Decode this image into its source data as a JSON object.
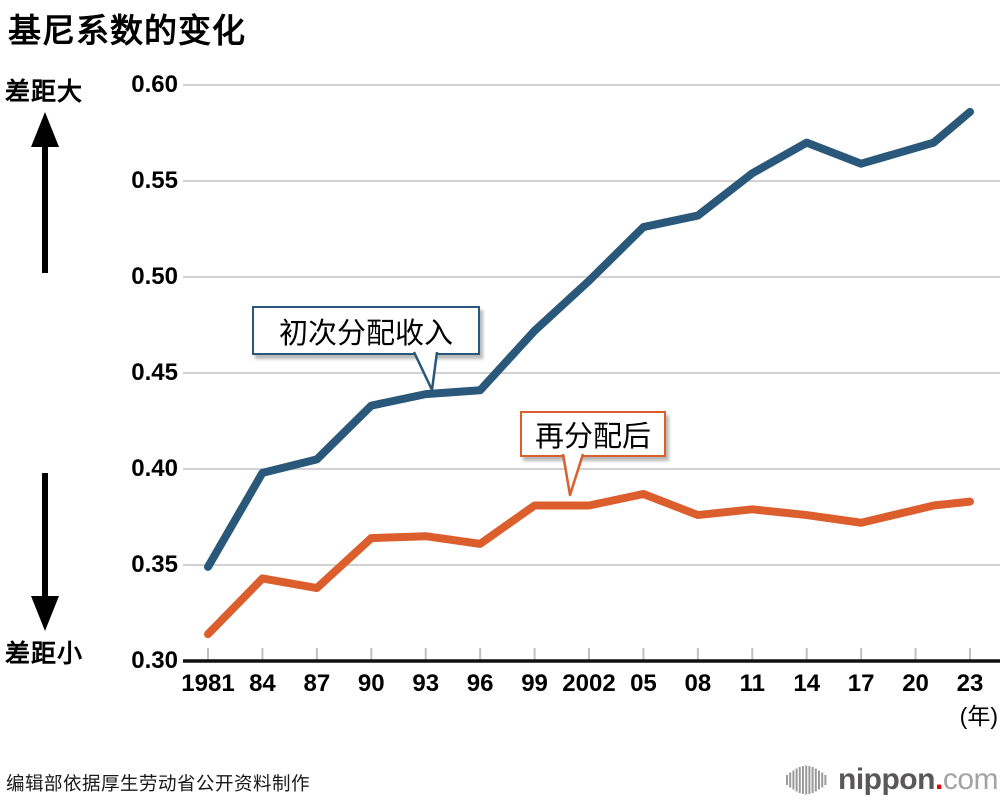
{
  "title": "基尼系数的变化",
  "y_axis": {
    "top_label": "差距大",
    "bottom_label": "差距小",
    "ticks": [
      "0.60",
      "0.55",
      "0.50",
      "0.45",
      "0.40",
      "0.35",
      "0.30"
    ]
  },
  "x_axis": {
    "tick_labels": [
      "1981",
      "84",
      "87",
      "90",
      "93",
      "96",
      "99",
      "2002",
      "05",
      "08",
      "11",
      "14",
      "17",
      "20",
      "23"
    ],
    "unit_label": "(年)"
  },
  "source": "编辑部依据厚生劳动省公开资料制作",
  "logo": {
    "name": "nippon",
    "dot": ".",
    "tld": "com"
  },
  "colors": {
    "primary": "#29587a",
    "redistributed": "#dc5e2c",
    "grid": "#d2d2d2",
    "tick": "#c0c0c0",
    "axis": "#111111",
    "logo_red": "#e60012"
  },
  "chart_data": {
    "type": "line",
    "title": "基尼系数的变化",
    "x": [
      1981,
      1984,
      1987,
      1990,
      1993,
      1996,
      1999,
      2002,
      2005,
      2008,
      2011,
      2014,
      2017,
      2021,
      2023
    ],
    "series": [
      {
        "name": "初次分配收入",
        "color": "#29587a",
        "values": [
          0.349,
          0.398,
          0.405,
          0.433,
          0.439,
          0.441,
          0.472,
          0.498,
          0.526,
          0.532,
          0.554,
          0.57,
          0.559,
          0.57,
          0.586
        ]
      },
      {
        "name": "再分配后",
        "color": "#dc5e2c",
        "values": [
          0.314,
          0.343,
          0.338,
          0.364,
          0.365,
          0.361,
          0.381,
          0.381,
          0.387,
          0.376,
          0.379,
          0.376,
          0.372,
          0.381,
          0.383
        ]
      }
    ],
    "ylim": [
      0.3,
      0.6
    ],
    "yticks": [
      0.6,
      0.55,
      0.5,
      0.45,
      0.4,
      0.35,
      0.3
    ],
    "xticks_years": [
      1981,
      1984,
      1987,
      1990,
      1993,
      1996,
      1999,
      2002,
      2005,
      2008,
      2011,
      2014,
      2017,
      2020,
      2023
    ],
    "grid": true,
    "legend": "callout-labels-on-plot"
  }
}
